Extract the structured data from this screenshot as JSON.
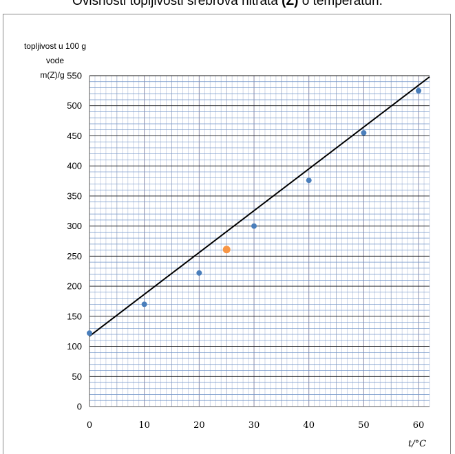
{
  "title": {
    "text_before": "Ovisnosti topljivosti srebrova nitrata ",
    "bold": "(Z)",
    "text_after": " o temperaturi."
  },
  "chart_data": {
    "type": "scatter",
    "title": "Ovisnosti topljivosti srebrova nitrata (Z) o temperaturi.",
    "ylabel_lines": [
      "topljivost u 100 g",
      "vode",
      "m(Z)/g"
    ],
    "xlabel": "t/°C",
    "xlim": [
      0,
      62
    ],
    "ylim": [
      0,
      550
    ],
    "x_ticks": [
      0,
      10,
      20,
      30,
      40,
      50,
      60
    ],
    "y_ticks": [
      0,
      50,
      100,
      150,
      200,
      250,
      300,
      350,
      400,
      450,
      500,
      550
    ],
    "grid": true,
    "series": [
      {
        "color": "#4a7ebb",
        "points": [
          {
            "x": 0,
            "y": 122
          },
          {
            "x": 10,
            "y": 170
          },
          {
            "x": 20,
            "y": 222
          },
          {
            "x": 30,
            "y": 300
          },
          {
            "x": 40,
            "y": 376
          },
          {
            "x": 50,
            "y": 455
          },
          {
            "x": 60,
            "y": 525
          }
        ]
      },
      {
        "color": "#f79646",
        "points": [
          {
            "x": 25,
            "y": 261
          }
        ]
      }
    ],
    "trendline": {
      "x0": 0,
      "y0": 117,
      "x1": 62,
      "y1": 548,
      "color": "#000000"
    }
  }
}
